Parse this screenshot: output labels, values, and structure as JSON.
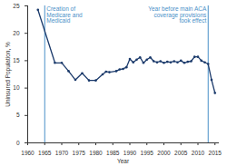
{
  "chart_data": {
    "type": "line",
    "x_label": "Year",
    "y_label": "Uninsured Population, %",
    "x": [
      1963,
      1968,
      1970,
      1972,
      1974,
      1976,
      1978,
      1980,
      1982,
      1983,
      1984,
      1986,
      1987,
      1988,
      1989,
      1990,
      1991,
      1992,
      1993,
      1994,
      1995,
      1996,
      1997,
      1998,
      1999,
      2000,
      2001,
      2002,
      2003,
      2004,
      2005,
      2006,
      2007,
      2008,
      2009,
      2010,
      2011,
      2012,
      2013,
      2014,
      2015
    ],
    "series": [
      {
        "name": "Uninsured Population",
        "color": "#1b3a6b",
        "marker": "circle",
        "values": [
          24.3,
          14.6,
          14.6,
          13.1,
          11.5,
          12.7,
          11.4,
          11.4,
          12.5,
          13.0,
          12.9,
          13.1,
          13.4,
          13.5,
          13.8,
          15.3,
          14.7,
          15.2,
          15.6,
          14.6,
          15.2,
          15.6,
          14.9,
          14.7,
          14.9,
          14.6,
          14.8,
          14.7,
          14.9,
          14.7,
          15.0,
          14.6,
          14.8,
          14.9,
          15.7,
          15.7,
          15.0,
          14.7,
          14.4,
          11.5,
          9.1
        ]
      }
    ],
    "xlim": [
      1960,
      2016
    ],
    "xticks": [
      1960,
      1965,
      1970,
      1975,
      1980,
      1985,
      1990,
      1995,
      2000,
      2005,
      2010,
      2015
    ],
    "ylim": [
      0,
      25
    ],
    "yticks": [
      0,
      5,
      10,
      15,
      20,
      25
    ],
    "grid": false,
    "annotations": [
      {
        "x": 1965,
        "text": "Creation of\nMedicare and\nMedicaid"
      },
      {
        "x": 2013,
        "text": "Year before main ACA\ncoverage provisions\ntook effect"
      }
    ]
  }
}
